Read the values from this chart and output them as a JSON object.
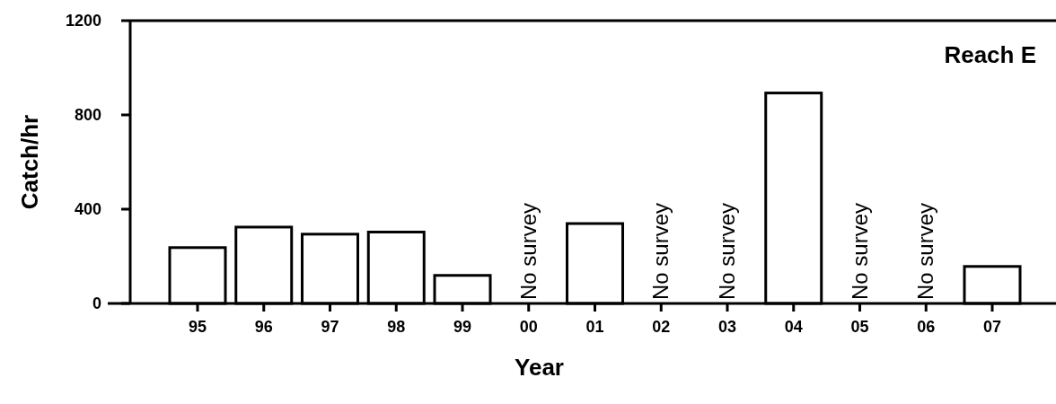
{
  "chart_data": {
    "type": "bar",
    "title": "Reach E",
    "xlabel": "Year",
    "ylabel": "Catch/hr",
    "categories": [
      "95",
      "96",
      "97",
      "98",
      "99",
      "00",
      "01",
      "02",
      "03",
      "04",
      "05",
      "06",
      "07"
    ],
    "values": [
      237,
      324,
      294,
      303,
      119,
      null,
      339,
      null,
      null,
      893,
      null,
      null,
      157
    ],
    "color": "#ffffff",
    "ylim": [
      0,
      1200
    ],
    "yticks": [
      0,
      400,
      800,
      1200
    ],
    "grid": false,
    "annotations": [
      "No survey",
      "No survey",
      "No survey",
      "No survey",
      "No survey"
    ]
  }
}
